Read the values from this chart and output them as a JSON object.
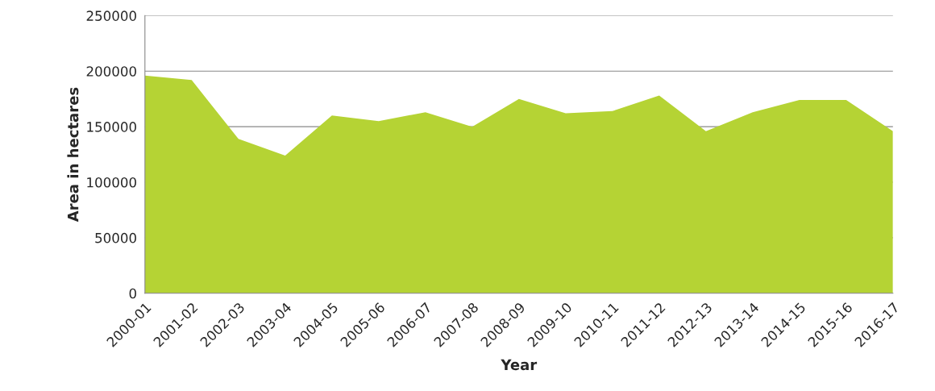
{
  "chart_data": {
    "type": "area",
    "xlabel": "Year",
    "ylabel": "Area in hectares",
    "categories": [
      "2000-01",
      "2001-02",
      "2002-03",
      "2003-04",
      "2004-05",
      "2005-06",
      "2006-07",
      "2007-08",
      "2008-09",
      "2009-10",
      "2010-11",
      "2011-12",
      "2012-13",
      "2013-14",
      "2014-15",
      "2015-16",
      "2016-17"
    ],
    "series": [
      {
        "color": "#b5d334",
        "values": [
          196000,
          192000,
          139000,
          124000,
          160000,
          155000,
          163000,
          150000,
          175000,
          162000,
          164000,
          178000,
          146000,
          163000,
          174000,
          174000,
          146000
        ]
      }
    ],
    "ylim": [
      0,
      250000
    ],
    "yticks": [
      0,
      50000,
      100000,
      150000,
      200000,
      250000
    ],
    "grid": "y",
    "legend": false
  }
}
